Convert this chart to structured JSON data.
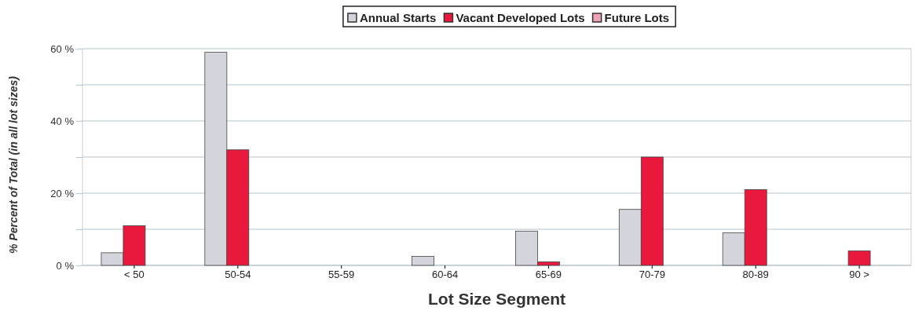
{
  "chart_data": {
    "type": "bar",
    "xlabel": "Lot Size Segment",
    "ylabel": "% Percent of Total (in all lot sizes)",
    "categories": [
      "< 50",
      "50-54",
      "55-59",
      "60-64",
      "65-69",
      "70-79",
      "80-89",
      "90 >"
    ],
    "series": [
      {
        "name": "Annual Starts",
        "color": "#d4d4dc",
        "values": [
          3.5,
          59,
          0,
          2.5,
          9.5,
          15.5,
          9,
          0
        ]
      },
      {
        "name": "Vacant Developed Lots",
        "color": "#e8193c",
        "values": [
          11,
          32,
          0,
          0,
          1,
          30,
          21,
          4
        ]
      },
      {
        "name": "Future Lots",
        "color": "#eea4b4",
        "values": [
          0,
          0,
          0,
          0,
          0,
          0,
          0,
          0
        ]
      }
    ],
    "ylim": [
      0,
      60
    ],
    "yticks": [
      {
        "value": 0,
        "label": "0 %"
      },
      {
        "value": 10,
        "label": null
      },
      {
        "value": 20,
        "label": "20 %"
      },
      {
        "value": 30,
        "label": null
      },
      {
        "value": 40,
        "label": "40 %"
      },
      {
        "value": 50,
        "label": null
      },
      {
        "value": 60,
        "label": "60 %"
      }
    ],
    "grid": "y",
    "legend": "top"
  }
}
